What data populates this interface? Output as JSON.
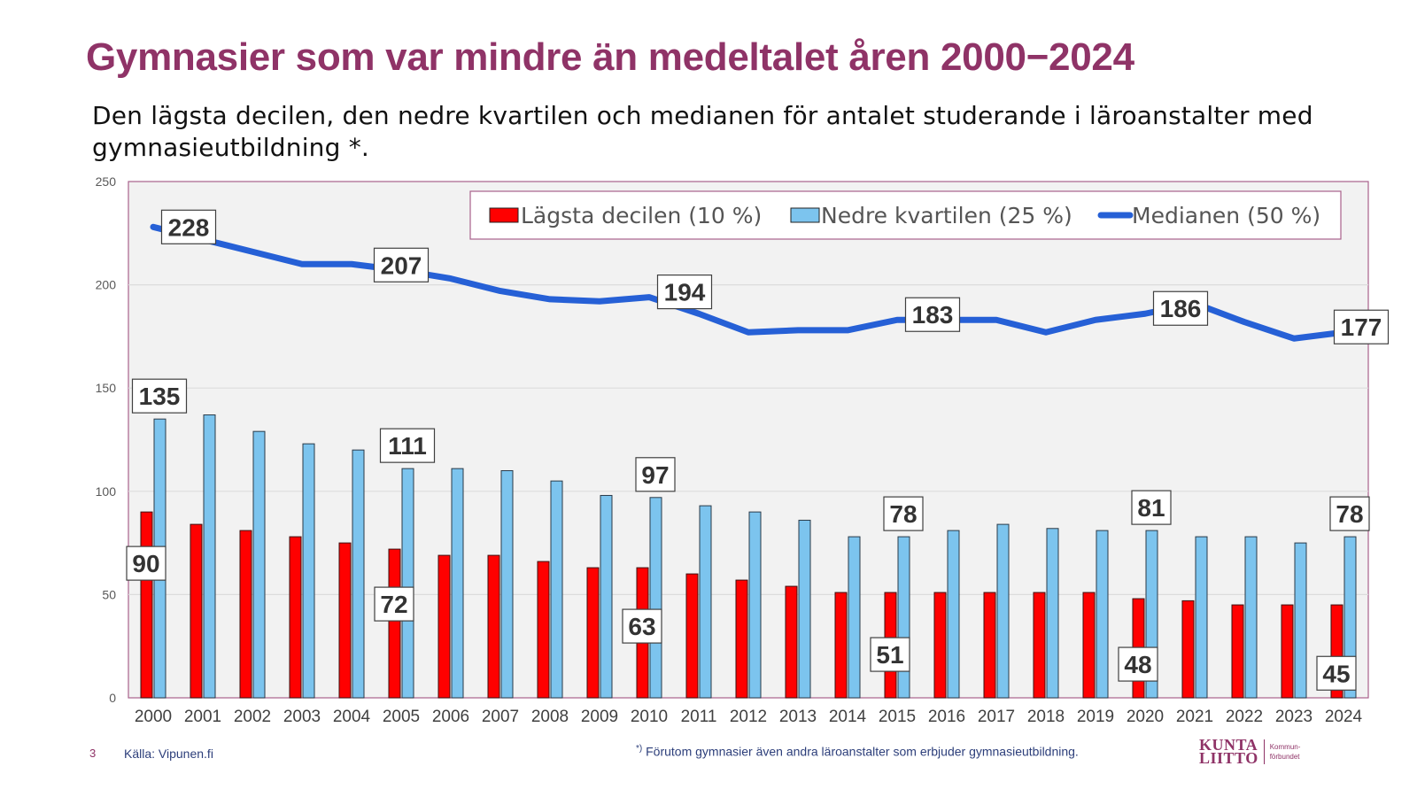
{
  "slide": {
    "title": "Gymnasier som var mindre än medeltalet åren 2000−2024",
    "subtitle": "Den lägsta decilen, den nedre kvartilen och medianen för antalet studerande i läroanstalter med gymnasieutbildning *.",
    "page_number": "3",
    "source": "Källa: Vipunen.fi",
    "footnote_mark": "*)",
    "footnote": " Förutom gymnasier även andra läroanstalter som erbjuder gymnasieutbildning.",
    "logo": {
      "line1": "KUNTA",
      "line2": "LIITTO",
      "sub1": "Kommun-",
      "sub2": "förbundet"
    }
  },
  "colors": {
    "title": "#8f3367",
    "decile": "#ff0000",
    "quartile": "#7cc4ee",
    "median": "#2660d6",
    "plot_bg": "#f2f2f2",
    "plot_border": "#a8628c"
  },
  "chart_data": {
    "type": "bar",
    "title": "Gymnasier som var mindre än medeltalet åren 2000−2024",
    "xlabel": "",
    "ylabel": "",
    "ylim": [
      0,
      250
    ],
    "yticks": [
      0,
      50,
      100,
      150,
      200,
      250
    ],
    "grid": true,
    "legend_position": "top-right",
    "categories": [
      "2000",
      "2001",
      "2002",
      "2003",
      "2004",
      "2005",
      "2006",
      "2007",
      "2008",
      "2009",
      "2010",
      "2011",
      "2012",
      "2013",
      "2014",
      "2015",
      "2016",
      "2017",
      "2018",
      "2019",
      "2020",
      "2021",
      "2022",
      "2023",
      "2024"
    ],
    "series": [
      {
        "name": "Lägsta decilen (10 %)",
        "type": "bar",
        "values": [
          90,
          84,
          81,
          78,
          75,
          72,
          69,
          69,
          66,
          63,
          63,
          60,
          57,
          54,
          51,
          51,
          51,
          51,
          51,
          51,
          48,
          47,
          45,
          45,
          45
        ],
        "labeled_indices": [
          0,
          5,
          10,
          15,
          20,
          24
        ]
      },
      {
        "name": "Nedre kvartilen (25 %)",
        "type": "bar",
        "values": [
          135,
          137,
          129,
          123,
          120,
          111,
          111,
          110,
          105,
          98,
          97,
          93,
          90,
          86,
          78,
          78,
          81,
          84,
          82,
          81,
          81,
          78,
          78,
          75,
          78
        ],
        "labeled_indices": [
          0,
          5,
          10,
          15,
          20,
          24
        ]
      },
      {
        "name": "Medianen (50 %)",
        "type": "line",
        "values": [
          228,
          222,
          216,
          210,
          210,
          207,
          203,
          197,
          193,
          192,
          194,
          186,
          177,
          178,
          178,
          183,
          183,
          183,
          177,
          183,
          186,
          191,
          182,
          174,
          177
        ],
        "labeled_indices": [
          0,
          5,
          10,
          15,
          20,
          24
        ]
      }
    ]
  }
}
